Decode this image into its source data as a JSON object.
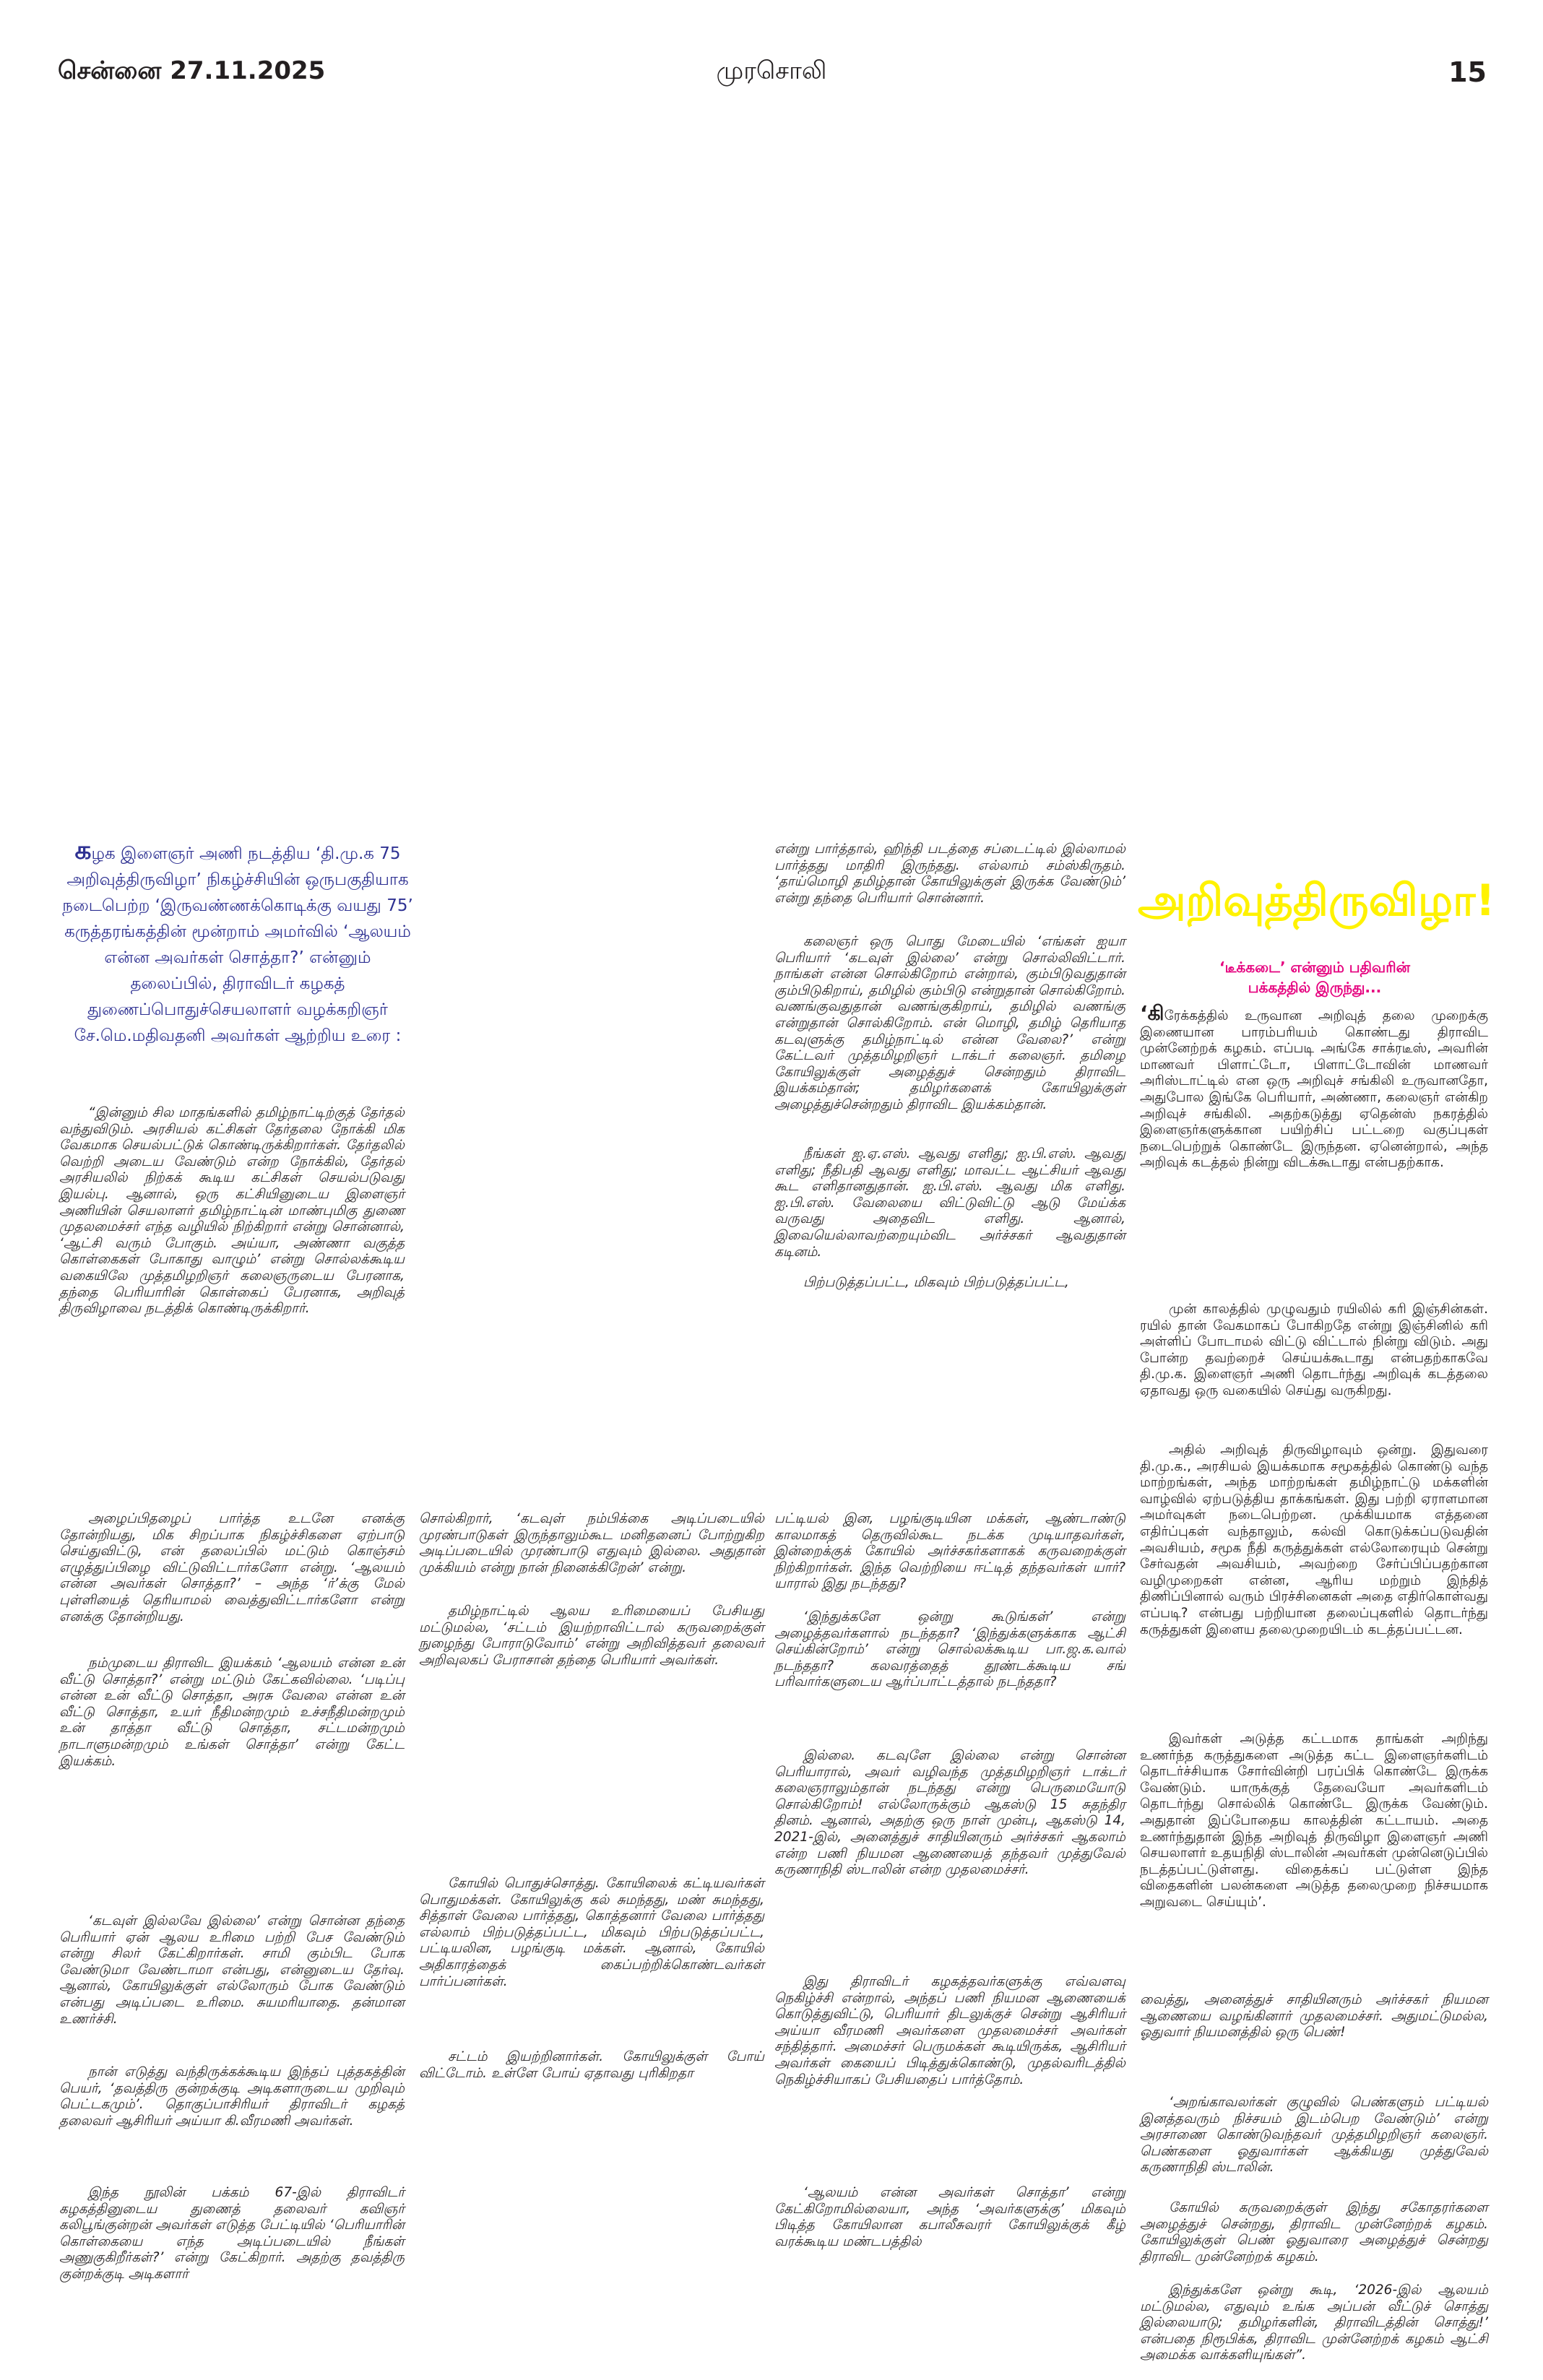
{
  "header": {
    "date": "சென்னை 27.11.2025",
    "newspaper": "முரசொலி",
    "page_number": "15"
  },
  "intro": {
    "drop_letter": "க",
    "text": "ழக இளைஞர் அணி நடத்திய ‘தி.மு.க 75 அறிவுத்திருவிழா’ நிகழ்ச்சியின் ஒருபகுதியாக நடைபெற்ற ‘இருவண்ணக்கொடிக்கு வயது 75’ கருத்தரங்கத்தின் மூன்றாம் அமர்வில் ‘ஆலயம் என்ன அவர்கள் சொத்தா?’ என்னும் தலைப்பில், திராவிடர் கழகத் துணைப்பொதுச்செயலாளர் வழக்கறிஞர் சே.மெ.மதிவதனி அவர்கள் ஆற்றிய உரை :"
  },
  "article_top": {
    "left": [
      "“இன்னும் சில மாதங்களில் தமிழ்நாட்டிற்குத் தேர்தல் வந்துவிடும். அரசியல் கட்சிகள் தேர்தலை நோக்கி மிக வேகமாக செயல்பட்டுக் கொண்டிருக்கிறார்கள். தேர்தலில் வெற்றி அடைய வேண்டும் என்ற நோக்கில், தேர்தல் அரசியலில் நிற்கக் கூடிய கட்சிகள் செயல்படுவது இயல்பு. ஆனால், ஒரு கட்சியினுடைய இளைஞர் அணியின் செயலாளர் தமிழ்நாட்டின் மாண்புமிகு துணை முதலமைச்சர் எந்த வழியில் நிற்கிறார் என்று சொன்னால், ‘ஆட்சி வரும் போகும். அய்யா, அண்ணா வகுத்த கொள்கைகள் போகாது வாழும்’ என்று சொல்லக்கூடிய வகையிலே முத்தமிழறிஞர் கலைஞருடைய பேரனாக, தந்தை பெரியாரின் கொள்கைப் பேரனாக, அறிவுத் திருவிழாவை நடத்திக் கொண்டிருக்கிறார்."
    ],
    "middle": [
      "என்று பார்த்தால், ஹிந்தி படத்தை சப்டைட்டில் இல்லாமல் பார்த்தது மாதிரி இருந்தது. எல்லாம் சம்ஸ்கிருதம். ‘தாய்மொழி தமிழ்தான் கோயிலுக்குள் இருக்க வேண்டும்’ என்று தந்தை பெரியார் சொன்னார்.",
      "கலைஞர் ஒரு பொது மேடையில் ‘எங்கள் ஐயா பெரியார் ‘கடவுள் இல்லை’ என்று சொல்லிவிட்டார். நாங்கள் என்ன சொல்கிறோம் என்றால், கும்பிடுவதுதான் கும்பிடுகிறாய், தமிழில் கும்பிடு என்றுதான் சொல்கிறோம். வணங்குவதுதான் வணங்குகிறாய், தமிழில் வணங்கு என்றுதான் சொல்கிறோம். என் மொழி, தமிழ் தெரியாத கடவுளுக்கு தமிழ்நாட்டில் என்ன வேலை?’ என்று கேட்டவர் முத்தமிழறிஞர் டாக்டர் கலைஞர். தமிழை கோயிலுக்குள் அழைத்துச் சென்றதும் திராவிட இயக்கம்தான்; தமிழர்களைக் கோயிலுக்குள் அழைத்துச்சென்றதும் திராவிட இயக்கம்தான்.",
      "நீங்கள் ஐ.ஏ.எஸ். ஆவது எளிது; ஐ.பி.எஸ். ஆவது எளிது; நீதிபதி ஆவது எளிது; மாவட்ட ஆட்சியர் ஆவது கூட எளிதானதுதான். ஐ.பி.எஸ். ஆவது மிக எளிது. ஐ.பி.எஸ். வேலையை விட்டுவிட்டு ஆடு மேய்க்க வருவது அதைவிட எளிது. ஆனால், இவையெல்லாவற்றையும்விட அர்ச்சகர் ஆவதுதான் கடினம்.",
      "பிற்படுத்தப்பட்ட, மிகவும் பிற்படுத்தப்பட்ட,"
    ]
  },
  "sidebar": {
    "title": "அறிவுத்திருவிழா!",
    "subtitle_line1": "‘டீக்கடை’ என்னும் பதிவரின்",
    "subtitle_line2": "பக்கத்தில் இருந்து...",
    "first_letter": "‘கி",
    "paragraphs": [
      "ரேக்கத்தில் உருவான அறிவுத் தலை முறைக்கு இணையான பாரம்பரியம் கொண்டது திராவிட முன்னேற்றக் கழகம். எப்படி அங்கே சாக்ரடீஸ், அவரின் மாணவர் பிளாட்டோ, பிளாட்டோவின் மாணவர் அரிஸ்டாட்டில் என ஒரு அறிவுச் சங்கிலி உருவானதோ, அதுபோல இங்கே பெரியார், அண்ணா, கலைஞர் என்கிற அறிவுச் சங்கிலி. அதற்கடுத்து ஏதென்ஸ் நகரத்தில் இளைஞர்களுக்கான பயிற்சிப் பட்டறை வகுப்புகள் நடைபெற்றுக் கொண்டே இருந்தன. ஏனென்றால், அந்த அறிவுக் கடத்தல் நின்று விடக்கூடாது என்பதற்காக.",
      "முன் காலத்தில் முழுவதும் ரயிலில் கரி இஞ்சின்கள். ரயில் தான் வேகமாகப் போகிறதே என்று இஞ்சினில் கரி அள்ளிப் போடாமல் விட்டு விட்டால் நின்று விடும். அது போன்ற தவற்றைச் செய்யக்கூடாது என்பதற்காகவே தி.மு.க. இளைஞர் அணி தொடர்ந்து அறிவுக் கடத்தலை ஏதாவது ஒரு வகையில் செய்து வருகிறது.",
      "அதில் அறிவுத் திருவிழாவும் ஒன்று. இதுவரை தி.மு.க., அரசியல் இயக்கமாக சமூகத்தில் கொண்டு வந்த மாற்றங்கள், அந்த மாற்றங்கள் தமிழ்நாட்டு மக்களின் வாழ்வில் ஏற்படுத்திய தாக்கங்கள். இது பற்றி ஏராளமான அமர்வுகள் நடைபெற்றன. முக்கியமாக எத்தனை எதிர்ப்புகள் வந்தாலும், கல்வி கொடுக்கப்படுவதின் அவசியம், சமூக நீதி கருத்துக்கள் எல்லோரையும் சென்று சேர்வதன் அவசியம், அவற்றை சேர்ப்பிப்பதற்கான வழிமுறைகள் என்ன, ஆரிய மற்றும் இந்தித் திணிப்பினால் வரும் பிரச்சினைகள் அதை எதிர்கொள்வது எப்படி? என்பது பற்றியான தலைப்புகளில் தொடர்ந்து கருத்துகள் இளைய தலைமுறையிடம் கடத்தப்பட்டன.",
      "இவர்கள் அடுத்த கட்டமாக தாங்கள் அறிந்து உணர்ந்த கருத்துகளை அடுத்த கட்ட இளைஞர்களிடம் தொடர்ச்சியாக சோர்வின்றி பரப்பிக் கொண்டே இருக்க வேண்டும். யாருக்குத் தேவையோ அவர்களிடம் தொடர்ந்து சொல்லிக் கொண்டே இருக்க வேண்டும். அதுதான் இப்போதைய காலத்தின் கட்டாயம். அதை உணர்ந்துதான் இந்த அறிவுத் திருவிழா இளைஞர் அணி செயலாளர் உதயநிதி ஸ்டாலின் அவர்கள் முன்னெடுப்பில் நடத்தப்பட்டுள்ளது. விதைக்கப் பட்டுள்ள இந்த விதைகளின் பலன்களை அடுத்த தலைமுறை நிச்சயமாக அறுவடை செய்யும்’."
    ]
  },
  "article_bottom": {
    "col1": [
      "அழைப்பிதழைப் பார்த்த உடனே எனக்கு தோன்றியது, மிக சிறப்பாக நிகழ்ச்சிகளை ஏற்பாடு செய்துவிட்டு, என் தலைப்பில் மட்டும் கொஞ்சம் எழுத்துப்பிழை விட்டுவிட்டார்களோ என்று. ‘ஆலயம் என்ன அவர்கள் சொத்தா?’ – அந்த ‘ர்’க்கு மேல் புள்ளியைத் தெரியாமல் வைத்துவிட்டார்களோ என்று எனக்கு தோன்றியது.",
      "நம்முடைய திராவிட இயக்கம் ‘ஆலயம் என்ன உன் வீட்டு சொத்தா?’ என்று மட்டும் கேட்கவில்லை. ‘படிப்பு என்ன உன் வீட்டு சொத்தா, அரசு வேலை என்ன உன் வீட்டு சொத்தா, உயர் நீதிமன்றமும் உச்சநீதிமன்றமும் உன் தாத்தா வீட்டு சொத்தா, சட்டமன்றமும் நாடாளுமன்றமும் உங்கள் சொத்தா’ என்று கேட்ட இயக்கம்.",
      "‘கடவுள் இல்லவே இல்லை’ என்று சொன்ன தந்தை பெரியார் ஏன் ஆலய உரிமை பற்றி பேச வேண்டும் என்று சிலர் கேட்கிறார்கள். சாமி கும்பிட போக வேண்டுமா வேண்டாமா என்பது, என்னுடைய தேர்வு. ஆனால், கோயிலுக்குள் எல்லோரும் போக வேண்டும் என்பது அடிப்படை உரிமை. சுயமரியாதை. தன்மான உணர்ச்சி.",
      "நான் எடுத்து வந்திருக்கக்கூடிய இந்தப் புத்தகத்தின் பெயர், ‘தவத்திரு குன்றக்குடி அடிகளாருடைய முறிவும் பெட்டகமும்’. தொகுப்பாசிரியர் திராவிடர் கழகத் தலைவர் ஆசிரியர் அய்யா கி.வீரமணி அவர்கள்.",
      "இந்த நூலின் பக்கம் 67-இல் திராவிடர் கழகத்தினுடைய துணைத் தலைவர் கவிஞர் கலிபூங்குன்றன் அவர்கள் எடுத்த பேட்டியில் ‘பெரியாரின் கொள்கையை எந்த அடிப்படையில் நீங்கள் அணுகுகிறீர்கள்?’ என்று கேட்கிறார். அதற்கு தவத்திரு குன்றக்குடி அடிகளார்"
    ],
    "col2": [
      "சொல்கிறார், ‘கடவுள் நம்பிக்கை அடிப்படையில் முரண்பாடுகள் இருந்தாலும்கூட மனிதனைப் போற்றுகிற அடிப்படையில் முரண்பாடு எதுவும் இல்லை. அதுதான் முக்கியம் என்று நான் நினைக்கிறேன்’ என்று.",
      "தமிழ்நாட்டில் ஆலய உரிமையைப் பேசியது மட்டுமல்ல, ‘சட்டம் இயற்றாவிட்டால் கருவறைக்குள் நுழைந்து போராடுவோம்’ என்று அறிவித்தவர் தலைவர் அறிவுலகப் பேராசான் தந்தை பெரியார் அவர்கள்.",
      "கோயில் பொதுச்சொத்து. கோயிலைக் கட்டியவர்கள் பொதுமக்கள். கோயிலுக்கு கல் சுமந்தது, மண் சுமந்தது, சித்தாள் வேலை பார்த்தது, கொத்தனார் வேலை பார்த்தது எல்லாம் பிற்படுத்தப்பட்ட, மிகவும் பிற்படுத்தப்பட்ட, பட்டியலின, பழங்குடி மக்கள். ஆனால், கோயில் அதிகாரத்தைக் கைப்பற்றிக்கொண்டவர்கள் பார்ப்பனர்கள்.",
      "சட்டம் இயற்றினார்கள். கோயிலுக்குள் போய் விட்டோம். உள்ளே போய் ஏதாவது புரிகிறதா"
    ],
    "col3": [
      "பட்டியல் இன, பழங்குடியின மக்கள், ஆண்டாண்டு காலமாகத் தெருவில்கூட நடக்க முடியாதவர்கள், இன்றைக்குக் கோயில் அர்ச்சகர்களாகக் கருவறைக்குள் நிற்கிறார்கள். இந்த வெற்றியை ஈட்டித் தந்தவர்கள் யார்? யாரால் இது நடந்தது?",
      "‘இந்துக்களே ஒன்று கூடுங்கள்’ என்று அழைத்தவர்களால் நடந்ததா? ‘இந்துக்களுக்காக ஆட்சி செய்கின்றோம்’ என்று சொல்லக்கூடிய பா.ஜ.க.வால் நடந்ததா? கலவரத்தைத் தூண்டக்கூடிய சங் பரிவார்களுடைய ஆர்ப்பாட்டத்தால் நடந்ததா?",
      "இல்லை. கடவுளே இல்லை என்று சொன்ன பெரியாரால், அவர் வழிவந்த முத்தமிழறிஞர் டாக்டர் கலைஞராலும்தான் நடந்தது என்று பெருமையோடு சொல்கிறோம்! எல்லோருக்கும் ஆகஸ்டு 15 சுதந்திர தினம். ஆனால், அதற்கு ஒரு நாள் முன்பு, ஆகஸ்டு 14, 2021-இல், அனைத்துச் சாதியினரும் அர்ச்சகர் ஆகலாம் என்ற பணி நியமன ஆணையைத் தந்தவர் முத்துவேல் கருணாநிதி ஸ்டாலின் என்ற முதலமைச்சர்.",
      "இது திராவிடர் கழகத்தவர்களுக்கு எவ்வளவு நெகிழ்ச்சி என்றால், அந்தப் பணி நியமன ஆணையைக் கொடுத்துவிட்டு, பெரியார் திடலுக்குச் சென்று ஆசிரியர் அய்யா வீரமணி அவர்களை முதலமைச்சர் அவர்கள் சந்தித்தார். அமைச்சர் பெருமக்கள் கூடியிருக்க, ஆசிரியர் அவர்கள் கையைப் பிடித்துக்கொண்டு, முதல்வரிடத்தில் நெகிழ்ச்சியாகப் பேசியதைப் பார்த்தோம்.",
      "‘ஆலயம் என்ன அவர்கள் சொத்தா’ என்று கேட்கிறோமில்லையா, அந்த ‘அவர்களுக்கு’ மிகவும் பிடித்த கோயிலான கபாலீசுவரர் கோயிலுக்குக் கீழ் வரக்கூடிய மண்டபத்தில்"
    ],
    "col4": [
      "வைத்து, அனைத்துச் சாதியினரும் அர்ச்சகர் நியமன ஆணையை வழங்கினார் முதலமைச்சர். அதுமட்டுமல்ல, ஓதுவார் நியமனத்தில் ஒரு பெண்!",
      "‘அறங்காவலர்கள் குழுவில் பெண்களும் பட்டியல் இனத்தவரும் நிச்சயம் இடம்பெற வேண்டும்’ என்று அரசாணை கொண்டுவந்தவர் முத்தமிழறிஞர் கலைஞர். பெண்களை ஓதுவார்கள் ஆக்கியது முத்துவேல் கருணாநிதி ஸ்டாலின்.",
      "கோயில் கருவறைக்குள் இந்து சகோதரர்களை அழைத்துச் சென்றது, திராவிட முன்னேற்றக் கழகம். கோயிலுக்குள் பெண் ஓதுவாரை அழைத்துச் சென்றது திராவிட முன்னேற்றக் கழகம்.",
      "இந்துக்களே ஒன்று கூடி, ‘2026-இல் ஆலயம் மட்டுமல்ல, எதுவும் உங்க அப்பன் வீட்டுச் சொத்து இல்லையாடு; தமிழர்களின், திராவிடத்தின் சொத்து!’ என்பதை நிரூபிக்க, திராவிட முன்னேற்றக் கழகம் ஆட்சி அமைக்க வாக்களியுங்கள்”."
    ]
  },
  "colors": {
    "intro": "#2e3192",
    "title": "#fff200",
    "subtitle": "#e5007e",
    "text": "#231f20"
  }
}
